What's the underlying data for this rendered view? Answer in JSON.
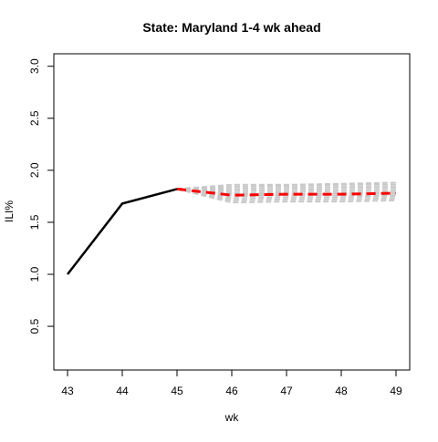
{
  "chart_data": {
    "type": "line",
    "title": "State: Maryland 1-4 wk ahead",
    "xlabel": "wk",
    "ylabel": "ILI%",
    "xlim": [
      42.75,
      49.25
    ],
    "ylim": [
      0.08,
      3.12
    ],
    "x_ticks": [
      "43",
      "44",
      "45",
      "46",
      "47",
      "48",
      "49"
    ],
    "y_ticks": [
      "0.5",
      "1.0",
      "1.5",
      "2.0",
      "2.5",
      "3.0"
    ],
    "grid": false,
    "legend": "none",
    "series": [
      {
        "role": "observed",
        "color": "#000000",
        "style": "solid",
        "x": [
          43,
          44,
          45
        ],
        "y": [
          1.0,
          1.68,
          1.82
        ]
      },
      {
        "role": "forecast-mean",
        "color": "#ff0000",
        "style": "dashed",
        "x": [
          45,
          46,
          47,
          48,
          49
        ],
        "y": [
          1.82,
          1.76,
          1.77,
          1.77,
          1.78
        ]
      }
    ],
    "ensemble": {
      "color": "#c8c8c8",
      "style": "dashed",
      "x": [
        45,
        46,
        47,
        48,
        49
      ],
      "members": [
        [
          1.82,
          1.86,
          1.86,
          1.87,
          1.88
        ],
        [
          1.82,
          1.84,
          1.85,
          1.86,
          1.86
        ],
        [
          1.82,
          1.82,
          1.83,
          1.84,
          1.84
        ],
        [
          1.82,
          1.8,
          1.81,
          1.82,
          1.82
        ],
        [
          1.82,
          1.78,
          1.79,
          1.8,
          1.8
        ],
        [
          1.82,
          1.77,
          1.77,
          1.78,
          1.78
        ],
        [
          1.82,
          1.75,
          1.76,
          1.76,
          1.76
        ],
        [
          1.82,
          1.73,
          1.74,
          1.74,
          1.75
        ],
        [
          1.82,
          1.71,
          1.72,
          1.72,
          1.73
        ],
        [
          1.82,
          1.69,
          1.7,
          1.7,
          1.71
        ]
      ]
    }
  }
}
